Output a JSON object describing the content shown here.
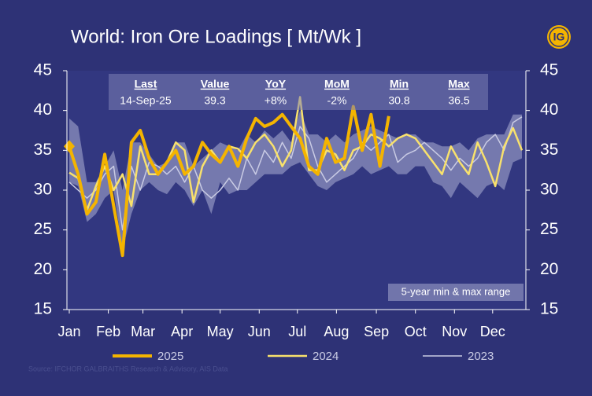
{
  "chart_data": {
    "type": "line",
    "title": "World: Iron Ore Loadings [ Mt/Wk ]",
    "logo": "IG",
    "source": "Source: IFCHOR GALBRAITHS Research & Advisory, AIS Data",
    "table": {
      "headers": [
        "Last",
        "Value",
        "YoY",
        "MoM",
        "Min",
        "Max"
      ],
      "row": [
        "14-Sep-25",
        "39.3",
        "+8%",
        "-2%",
        "30.8",
        "36.5"
      ]
    },
    "x": [
      1,
      2,
      3,
      4,
      5,
      6,
      7,
      8,
      9,
      10,
      11,
      12,
      13,
      14,
      15,
      16,
      17,
      18,
      19,
      20,
      21,
      22,
      23,
      24,
      25,
      26,
      27,
      28,
      29,
      30,
      31,
      32,
      33,
      34,
      35,
      36,
      37,
      38,
      39,
      40,
      41,
      42,
      43,
      44,
      45,
      46,
      47,
      48,
      49,
      50,
      51,
      52
    ],
    "xlim": [
      1,
      52
    ],
    "xticks": [
      {
        "value": 1,
        "label": "Jan"
      },
      {
        "value": 5.4,
        "label": "Feb"
      },
      {
        "value": 9.3,
        "label": "Mar"
      },
      {
        "value": 13.7,
        "label": "Apr"
      },
      {
        "value": 18,
        "label": "May"
      },
      {
        "value": 22.4,
        "label": "Jun"
      },
      {
        "value": 26.7,
        "label": "Jul"
      },
      {
        "value": 31.1,
        "label": "Aug"
      },
      {
        "value": 35.6,
        "label": "Sep"
      },
      {
        "value": 40,
        "label": "Oct"
      },
      {
        "value": 44.4,
        "label": "Nov"
      },
      {
        "value": 48.7,
        "label": "Dec"
      }
    ],
    "ylim": [
      15,
      45
    ],
    "yticks": [
      15,
      20,
      25,
      30,
      35,
      40,
      45
    ],
    "range": {
      "name": "5-year min & max range",
      "color": "#8c90bd",
      "high": [
        39,
        38,
        31,
        31,
        33,
        35,
        30,
        36,
        36,
        34.5,
        33,
        33.5,
        36,
        36,
        33,
        34,
        35,
        36,
        35.5,
        35,
        37,
        36,
        37.5,
        36.5,
        37.5,
        36,
        40,
        37,
        37,
        36,
        37,
        36,
        37,
        37.5,
        38,
        37.5,
        37,
        36.5,
        37,
        37,
        36,
        36,
        35.5,
        35.5,
        36,
        35,
        36.5,
        37,
        37,
        37,
        39.5,
        39.5
      ],
      "low": [
        31,
        30.5,
        26,
        27,
        29,
        30,
        22.5,
        27,
        30,
        31,
        30,
        29.5,
        31,
        30,
        28,
        30,
        27,
        31,
        29.5,
        30,
        30,
        31,
        32,
        32,
        32,
        33,
        33.5,
        32,
        30.5,
        30,
        31,
        31.5,
        32,
        33,
        32,
        32.5,
        33,
        32,
        32,
        33,
        33,
        31,
        30.5,
        29,
        31,
        30,
        29,
        30.5,
        31,
        30,
        33.5,
        34
      ]
    },
    "series": [
      {
        "name": "2023",
        "color": "#c9cbe4",
        "width": 1.5,
        "values": [
          31,
          30,
          29,
          30,
          32,
          33,
          25,
          33,
          30,
          33.5,
          33,
          32,
          33,
          31,
          33,
          30,
          29,
          30,
          31.5,
          30,
          34,
          32,
          35,
          33.5,
          36,
          34,
          38,
          36.5,
          33,
          31,
          32,
          33,
          34,
          36,
          35,
          36,
          37,
          33.5,
          34.5,
          35,
          36,
          35,
          34,
          32.5,
          34,
          33,
          34,
          36,
          37,
          35,
          38.5,
          39.2
        ]
      },
      {
        "name": "2024",
        "color": "#f8e16c",
        "width": 2.5,
        "values": [
          32.2,
          31.5,
          27.5,
          30.5,
          33,
          30,
          32,
          28,
          35.5,
          32,
          32,
          33.5,
          36,
          35,
          28.5,
          33,
          35,
          33.5,
          35.5,
          35.2,
          34,
          36,
          37,
          35.5,
          33,
          35,
          41.7,
          32.5,
          32.5,
          35,
          34.5,
          32.5,
          35,
          35.5,
          37,
          36.5,
          35.5,
          36.5,
          37,
          36.5,
          35,
          33.5,
          32,
          35.5,
          33.5,
          32,
          36,
          33.5,
          30.5,
          35.5,
          37.8,
          35
        ]
      },
      {
        "name": "2025",
        "color": "#f4b400",
        "width": 4,
        "values": [
          35.5,
          32,
          27,
          28.5,
          34.5,
          28,
          21.8,
          36,
          37.5,
          34,
          32,
          33.5,
          35,
          32,
          33,
          36,
          34.5,
          33.5,
          35.5,
          33,
          36.5,
          39,
          38,
          38.5,
          39.5,
          38,
          36.5,
          33,
          32,
          36.5,
          33.5,
          34,
          40.5,
          35,
          39.5,
          33,
          39.3,
          null,
          null,
          null,
          null,
          null,
          null,
          null,
          null,
          null,
          null,
          null,
          null,
          null,
          null,
          null
        ]
      }
    ]
  }
}
